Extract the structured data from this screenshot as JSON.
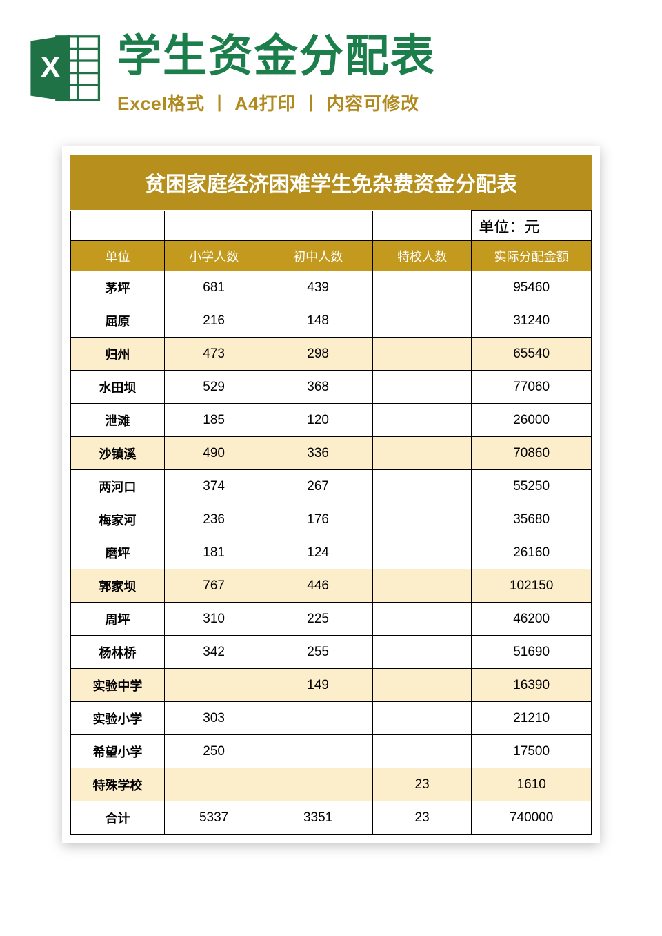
{
  "colors": {
    "title_green": "#1b7e4b",
    "subtitle_brown": "#b08a1f",
    "table_title_bg": "#b68f1c",
    "header_bg": "#c49a1e",
    "highlight_bg": "#fdeecb",
    "white": "#ffffff",
    "excel_green": "#1f7246",
    "excel_light": "#ffffff"
  },
  "header": {
    "main_title": "学生资金分配表",
    "subtitle": "Excel格式 丨 A4打印 丨 内容可修改"
  },
  "sheet": {
    "title": "贫困家庭经济困难学生免杂费资金分配表",
    "unit_label": "单位：元",
    "columns": [
      "单位",
      "小学人数",
      "初中人数",
      "特校人数",
      "实际分配金额"
    ],
    "rows": [
      {
        "unit": "茅坪",
        "a": "681",
        "b": "439",
        "c": "",
        "d": "95460",
        "hl": false
      },
      {
        "unit": "屈原",
        "a": "216",
        "b": "148",
        "c": "",
        "d": "31240",
        "hl": false
      },
      {
        "unit": "归州",
        "a": "473",
        "b": "298",
        "c": "",
        "d": "65540",
        "hl": true
      },
      {
        "unit": "水田坝",
        "a": "529",
        "b": "368",
        "c": "",
        "d": "77060",
        "hl": false
      },
      {
        "unit": "泄滩",
        "a": "185",
        "b": "120",
        "c": "",
        "d": "26000",
        "hl": false
      },
      {
        "unit": "沙镇溪",
        "a": "490",
        "b": "336",
        "c": "",
        "d": "70860",
        "hl": true
      },
      {
        "unit": "两河口",
        "a": "374",
        "b": "267",
        "c": "",
        "d": "55250",
        "hl": false
      },
      {
        "unit": "梅家河",
        "a": "236",
        "b": "176",
        "c": "",
        "d": "35680",
        "hl": false
      },
      {
        "unit": "磨坪",
        "a": "181",
        "b": "124",
        "c": "",
        "d": "26160",
        "hl": false
      },
      {
        "unit": "郭家坝",
        "a": "767",
        "b": "446",
        "c": "",
        "d": "102150",
        "hl": true
      },
      {
        "unit": "周坪",
        "a": "310",
        "b": "225",
        "c": "",
        "d": "46200",
        "hl": false
      },
      {
        "unit": "杨林桥",
        "a": "342",
        "b": "255",
        "c": "",
        "d": "51690",
        "hl": false
      },
      {
        "unit": "实验中学",
        "a": "",
        "b": "149",
        "c": "",
        "d": "16390",
        "hl": true
      },
      {
        "unit": "实验小学",
        "a": "303",
        "b": "",
        "c": "",
        "d": "21210",
        "hl": false
      },
      {
        "unit": "希望小学",
        "a": "250",
        "b": "",
        "c": "",
        "d": "17500",
        "hl": false
      },
      {
        "unit": "特殊学校",
        "a": "",
        "b": "",
        "c": "23",
        "d": "1610",
        "hl": true
      },
      {
        "unit": "合计",
        "a": "5337",
        "b": "3351",
        "c": "23",
        "d": "740000",
        "hl": false
      }
    ]
  }
}
